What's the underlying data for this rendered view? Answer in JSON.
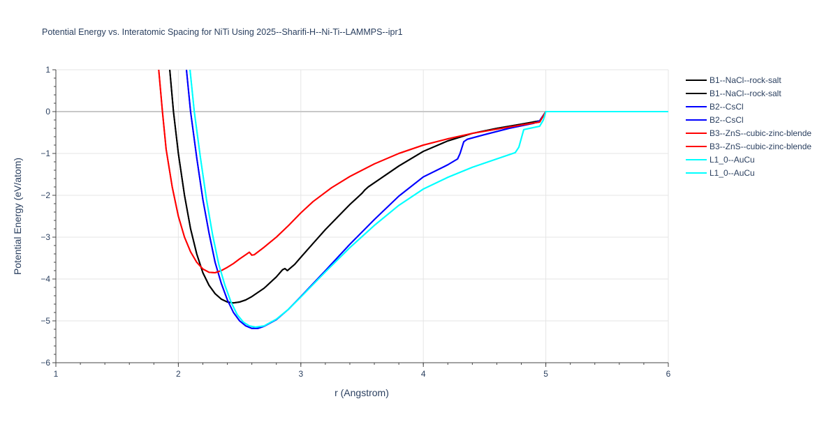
{
  "chart_data": {
    "type": "line",
    "title": "Potential Energy vs. Interatomic Spacing for NiTi Using 2025--Sharifi-H--Ni-Ti--LAMMPS--ipr1",
    "xlabel": "r (Angstrom)",
    "ylabel": "Potential Energy (eV/atom)",
    "xlim": [
      1,
      6
    ],
    "ylim": [
      -6,
      1
    ],
    "xticks": [
      1,
      2,
      3,
      4,
      5,
      6
    ],
    "yticks": [
      -6,
      -5,
      -4,
      -3,
      -2,
      -1,
      0,
      1
    ],
    "grid": true,
    "legend_position": "top-right",
    "series": [
      {
        "name": "B1--NaCl--rock-salt",
        "color": "#000000",
        "points": [
          [
            1.93,
            1
          ],
          [
            1.96,
            0
          ],
          [
            2.0,
            -1
          ],
          [
            2.05,
            -2
          ],
          [
            2.1,
            -2.8
          ],
          [
            2.15,
            -3.4
          ],
          [
            2.2,
            -3.85
          ],
          [
            2.25,
            -4.15
          ],
          [
            2.3,
            -4.35
          ],
          [
            2.35,
            -4.48
          ],
          [
            2.4,
            -4.55
          ],
          [
            2.45,
            -4.57
          ],
          [
            2.5,
            -4.55
          ],
          [
            2.55,
            -4.5
          ],
          [
            2.6,
            -4.42
          ],
          [
            2.7,
            -4.22
          ],
          [
            2.8,
            -3.95
          ],
          [
            2.85,
            -3.78
          ],
          [
            2.87,
            -3.75
          ],
          [
            2.89,
            -3.8
          ],
          [
            2.95,
            -3.65
          ],
          [
            3.0,
            -3.48
          ],
          [
            3.1,
            -3.15
          ],
          [
            3.2,
            -2.82
          ],
          [
            3.3,
            -2.52
          ],
          [
            3.4,
            -2.22
          ],
          [
            3.5,
            -1.95
          ],
          [
            3.52,
            -1.88
          ],
          [
            3.55,
            -1.8
          ],
          [
            3.7,
            -1.5
          ],
          [
            3.8,
            -1.3
          ],
          [
            4.0,
            -0.95
          ],
          [
            4.2,
            -0.7
          ],
          [
            4.4,
            -0.52
          ],
          [
            4.6,
            -0.4
          ],
          [
            4.8,
            -0.3
          ],
          [
            4.95,
            -0.22
          ],
          [
            5.0,
            0
          ],
          [
            6,
            0
          ]
        ]
      },
      {
        "name": "B1--NaCl--rock-salt",
        "color": "#000000",
        "points": [
          [
            1.93,
            1
          ],
          [
            1.96,
            0
          ],
          [
            2.0,
            -1
          ],
          [
            2.05,
            -2
          ],
          [
            2.1,
            -2.8
          ],
          [
            2.15,
            -3.4
          ],
          [
            2.2,
            -3.85
          ],
          [
            2.25,
            -4.15
          ],
          [
            2.3,
            -4.35
          ],
          [
            2.35,
            -4.48
          ],
          [
            2.4,
            -4.55
          ],
          [
            2.45,
            -4.57
          ],
          [
            2.5,
            -4.55
          ],
          [
            2.55,
            -4.5
          ],
          [
            2.6,
            -4.42
          ],
          [
            2.7,
            -4.22
          ],
          [
            2.8,
            -3.95
          ],
          [
            2.85,
            -3.78
          ],
          [
            2.87,
            -3.75
          ],
          [
            2.89,
            -3.8
          ],
          [
            2.95,
            -3.65
          ],
          [
            3.0,
            -3.48
          ],
          [
            3.1,
            -3.15
          ],
          [
            3.2,
            -2.82
          ],
          [
            3.3,
            -2.52
          ],
          [
            3.4,
            -2.22
          ],
          [
            3.5,
            -1.95
          ],
          [
            3.52,
            -1.88
          ],
          [
            3.55,
            -1.8
          ],
          [
            3.7,
            -1.5
          ],
          [
            3.8,
            -1.3
          ],
          [
            4.0,
            -0.95
          ],
          [
            4.2,
            -0.7
          ],
          [
            4.4,
            -0.52
          ],
          [
            4.6,
            -0.4
          ],
          [
            4.8,
            -0.3
          ],
          [
            4.95,
            -0.22
          ],
          [
            5.0,
            0
          ],
          [
            6,
            0
          ]
        ]
      },
      {
        "name": "B2--CsCl",
        "color": "#0000ff",
        "points": [
          [
            2.066,
            1
          ],
          [
            2.1,
            0
          ],
          [
            2.15,
            -1.1
          ],
          [
            2.2,
            -2.1
          ],
          [
            2.25,
            -2.9
          ],
          [
            2.3,
            -3.6
          ],
          [
            2.35,
            -4.1
          ],
          [
            2.4,
            -4.5
          ],
          [
            2.45,
            -4.8
          ],
          [
            2.5,
            -5.0
          ],
          [
            2.55,
            -5.12
          ],
          [
            2.6,
            -5.18
          ],
          [
            2.65,
            -5.18
          ],
          [
            2.7,
            -5.13
          ],
          [
            2.8,
            -4.97
          ],
          [
            2.9,
            -4.72
          ],
          [
            3.0,
            -4.42
          ],
          [
            3.2,
            -3.8
          ],
          [
            3.4,
            -3.17
          ],
          [
            3.6,
            -2.58
          ],
          [
            3.8,
            -2.02
          ],
          [
            4.0,
            -1.56
          ],
          [
            4.2,
            -1.27
          ],
          [
            4.28,
            -1.13
          ],
          [
            4.3,
            -1.0
          ],
          [
            4.33,
            -0.72
          ],
          [
            4.36,
            -0.66
          ],
          [
            4.5,
            -0.55
          ],
          [
            4.7,
            -0.4
          ],
          [
            4.9,
            -0.28
          ],
          [
            4.95,
            -0.22
          ],
          [
            5,
            0
          ],
          [
            6,
            0
          ]
        ]
      },
      {
        "name": "B2--CsCl",
        "color": "#0000ff",
        "points": [
          [
            2.066,
            1
          ],
          [
            2.1,
            0
          ],
          [
            2.15,
            -1.1
          ],
          [
            2.2,
            -2.1
          ],
          [
            2.25,
            -2.9
          ],
          [
            2.3,
            -3.6
          ],
          [
            2.35,
            -4.1
          ],
          [
            2.4,
            -4.5
          ],
          [
            2.45,
            -4.8
          ],
          [
            2.5,
            -5.0
          ],
          [
            2.55,
            -5.12
          ],
          [
            2.6,
            -5.18
          ],
          [
            2.65,
            -5.18
          ],
          [
            2.7,
            -5.13
          ],
          [
            2.8,
            -4.97
          ],
          [
            2.9,
            -4.72
          ],
          [
            3.0,
            -4.42
          ],
          [
            3.2,
            -3.8
          ],
          [
            3.4,
            -3.17
          ],
          [
            3.6,
            -2.58
          ],
          [
            3.8,
            -2.02
          ],
          [
            4.0,
            -1.56
          ],
          [
            4.2,
            -1.27
          ],
          [
            4.28,
            -1.13
          ],
          [
            4.3,
            -1.0
          ],
          [
            4.33,
            -0.72
          ],
          [
            4.36,
            -0.66
          ],
          [
            4.5,
            -0.55
          ],
          [
            4.7,
            -0.4
          ],
          [
            4.9,
            -0.28
          ],
          [
            4.95,
            -0.22
          ],
          [
            5,
            0
          ],
          [
            6,
            0
          ]
        ]
      },
      {
        "name": "B3--ZnS--cubic-zinc-blende",
        "color": "#ff0000",
        "points": [
          [
            1.84,
            1
          ],
          [
            1.87,
            0
          ],
          [
            1.9,
            -0.9
          ],
          [
            1.95,
            -1.8
          ],
          [
            2.0,
            -2.5
          ],
          [
            2.05,
            -3.0
          ],
          [
            2.1,
            -3.35
          ],
          [
            2.15,
            -3.6
          ],
          [
            2.2,
            -3.76
          ],
          [
            2.25,
            -3.84
          ],
          [
            2.3,
            -3.85
          ],
          [
            2.35,
            -3.8
          ],
          [
            2.4,
            -3.72
          ],
          [
            2.45,
            -3.63
          ],
          [
            2.5,
            -3.52
          ],
          [
            2.55,
            -3.42
          ],
          [
            2.58,
            -3.36
          ],
          [
            2.6,
            -3.43
          ],
          [
            2.62,
            -3.42
          ],
          [
            2.7,
            -3.24
          ],
          [
            2.8,
            -3.0
          ],
          [
            2.9,
            -2.72
          ],
          [
            3.0,
            -2.42
          ],
          [
            3.1,
            -2.15
          ],
          [
            3.25,
            -1.82
          ],
          [
            3.4,
            -1.55
          ],
          [
            3.6,
            -1.25
          ],
          [
            3.8,
            -1.0
          ],
          [
            4.0,
            -0.8
          ],
          [
            4.2,
            -0.65
          ],
          [
            4.4,
            -0.52
          ],
          [
            4.6,
            -0.42
          ],
          [
            4.8,
            -0.32
          ],
          [
            4.95,
            -0.25
          ],
          [
            5,
            0
          ],
          [
            6,
            0
          ]
        ]
      },
      {
        "name": "B3--ZnS--cubic-zinc-blende",
        "color": "#ff0000",
        "points": [
          [
            1.84,
            1
          ],
          [
            1.87,
            0
          ],
          [
            1.9,
            -0.9
          ],
          [
            1.95,
            -1.8
          ],
          [
            2.0,
            -2.5
          ],
          [
            2.05,
            -3.0
          ],
          [
            2.1,
            -3.35
          ],
          [
            2.15,
            -3.6
          ],
          [
            2.2,
            -3.76
          ],
          [
            2.25,
            -3.84
          ],
          [
            2.3,
            -3.85
          ],
          [
            2.35,
            -3.8
          ],
          [
            2.4,
            -3.72
          ],
          [
            2.45,
            -3.63
          ],
          [
            2.5,
            -3.52
          ],
          [
            2.55,
            -3.42
          ],
          [
            2.58,
            -3.36
          ],
          [
            2.6,
            -3.43
          ],
          [
            2.62,
            -3.42
          ],
          [
            2.7,
            -3.24
          ],
          [
            2.8,
            -3.0
          ],
          [
            2.9,
            -2.72
          ],
          [
            3.0,
            -2.42
          ],
          [
            3.1,
            -2.15
          ],
          [
            3.25,
            -1.82
          ],
          [
            3.4,
            -1.55
          ],
          [
            3.6,
            -1.25
          ],
          [
            3.8,
            -1.0
          ],
          [
            4.0,
            -0.8
          ],
          [
            4.2,
            -0.65
          ],
          [
            4.4,
            -0.52
          ],
          [
            4.6,
            -0.42
          ],
          [
            4.8,
            -0.32
          ],
          [
            4.95,
            -0.25
          ],
          [
            5,
            0
          ],
          [
            6,
            0
          ]
        ]
      },
      {
        "name": "L1_0--AuCu",
        "color": "#00ffff",
        "points": [
          [
            2.095,
            1
          ],
          [
            2.13,
            0
          ],
          [
            2.18,
            -1.1
          ],
          [
            2.23,
            -2.1
          ],
          [
            2.28,
            -2.95
          ],
          [
            2.33,
            -3.65
          ],
          [
            2.38,
            -4.15
          ],
          [
            2.43,
            -4.55
          ],
          [
            2.48,
            -4.85
          ],
          [
            2.53,
            -5.03
          ],
          [
            2.58,
            -5.12
          ],
          [
            2.63,
            -5.15
          ],
          [
            2.7,
            -5.12
          ],
          [
            2.8,
            -4.96
          ],
          [
            2.9,
            -4.72
          ],
          [
            3.0,
            -4.43
          ],
          [
            3.2,
            -3.83
          ],
          [
            3.4,
            -3.25
          ],
          [
            3.6,
            -2.72
          ],
          [
            3.8,
            -2.24
          ],
          [
            4.0,
            -1.85
          ],
          [
            4.2,
            -1.57
          ],
          [
            4.4,
            -1.33
          ],
          [
            4.6,
            -1.13
          ],
          [
            4.75,
            -0.98
          ],
          [
            4.78,
            -0.85
          ],
          [
            4.82,
            -0.43
          ],
          [
            4.95,
            -0.35
          ],
          [
            4.98,
            -0.2
          ],
          [
            5,
            0
          ],
          [
            6,
            0
          ]
        ]
      },
      {
        "name": "L1_0--AuCu",
        "color": "#00ffff",
        "points": [
          [
            2.095,
            1
          ],
          [
            2.13,
            0
          ],
          [
            2.18,
            -1.1
          ],
          [
            2.23,
            -2.1
          ],
          [
            2.28,
            -2.95
          ],
          [
            2.33,
            -3.65
          ],
          [
            2.38,
            -4.15
          ],
          [
            2.43,
            -4.55
          ],
          [
            2.48,
            -4.85
          ],
          [
            2.53,
            -5.03
          ],
          [
            2.58,
            -5.12
          ],
          [
            2.63,
            -5.15
          ],
          [
            2.7,
            -5.12
          ],
          [
            2.8,
            -4.96
          ],
          [
            2.9,
            -4.72
          ],
          [
            3.0,
            -4.43
          ],
          [
            3.2,
            -3.83
          ],
          [
            3.4,
            -3.25
          ],
          [
            3.6,
            -2.72
          ],
          [
            3.8,
            -2.24
          ],
          [
            4.0,
            -1.85
          ],
          [
            4.2,
            -1.57
          ],
          [
            4.4,
            -1.33
          ],
          [
            4.6,
            -1.13
          ],
          [
            4.75,
            -0.98
          ],
          [
            4.78,
            -0.85
          ],
          [
            4.82,
            -0.43
          ],
          [
            4.95,
            -0.35
          ],
          [
            4.98,
            -0.2
          ],
          [
            5,
            0
          ],
          [
            6,
            0
          ]
        ]
      }
    ]
  }
}
